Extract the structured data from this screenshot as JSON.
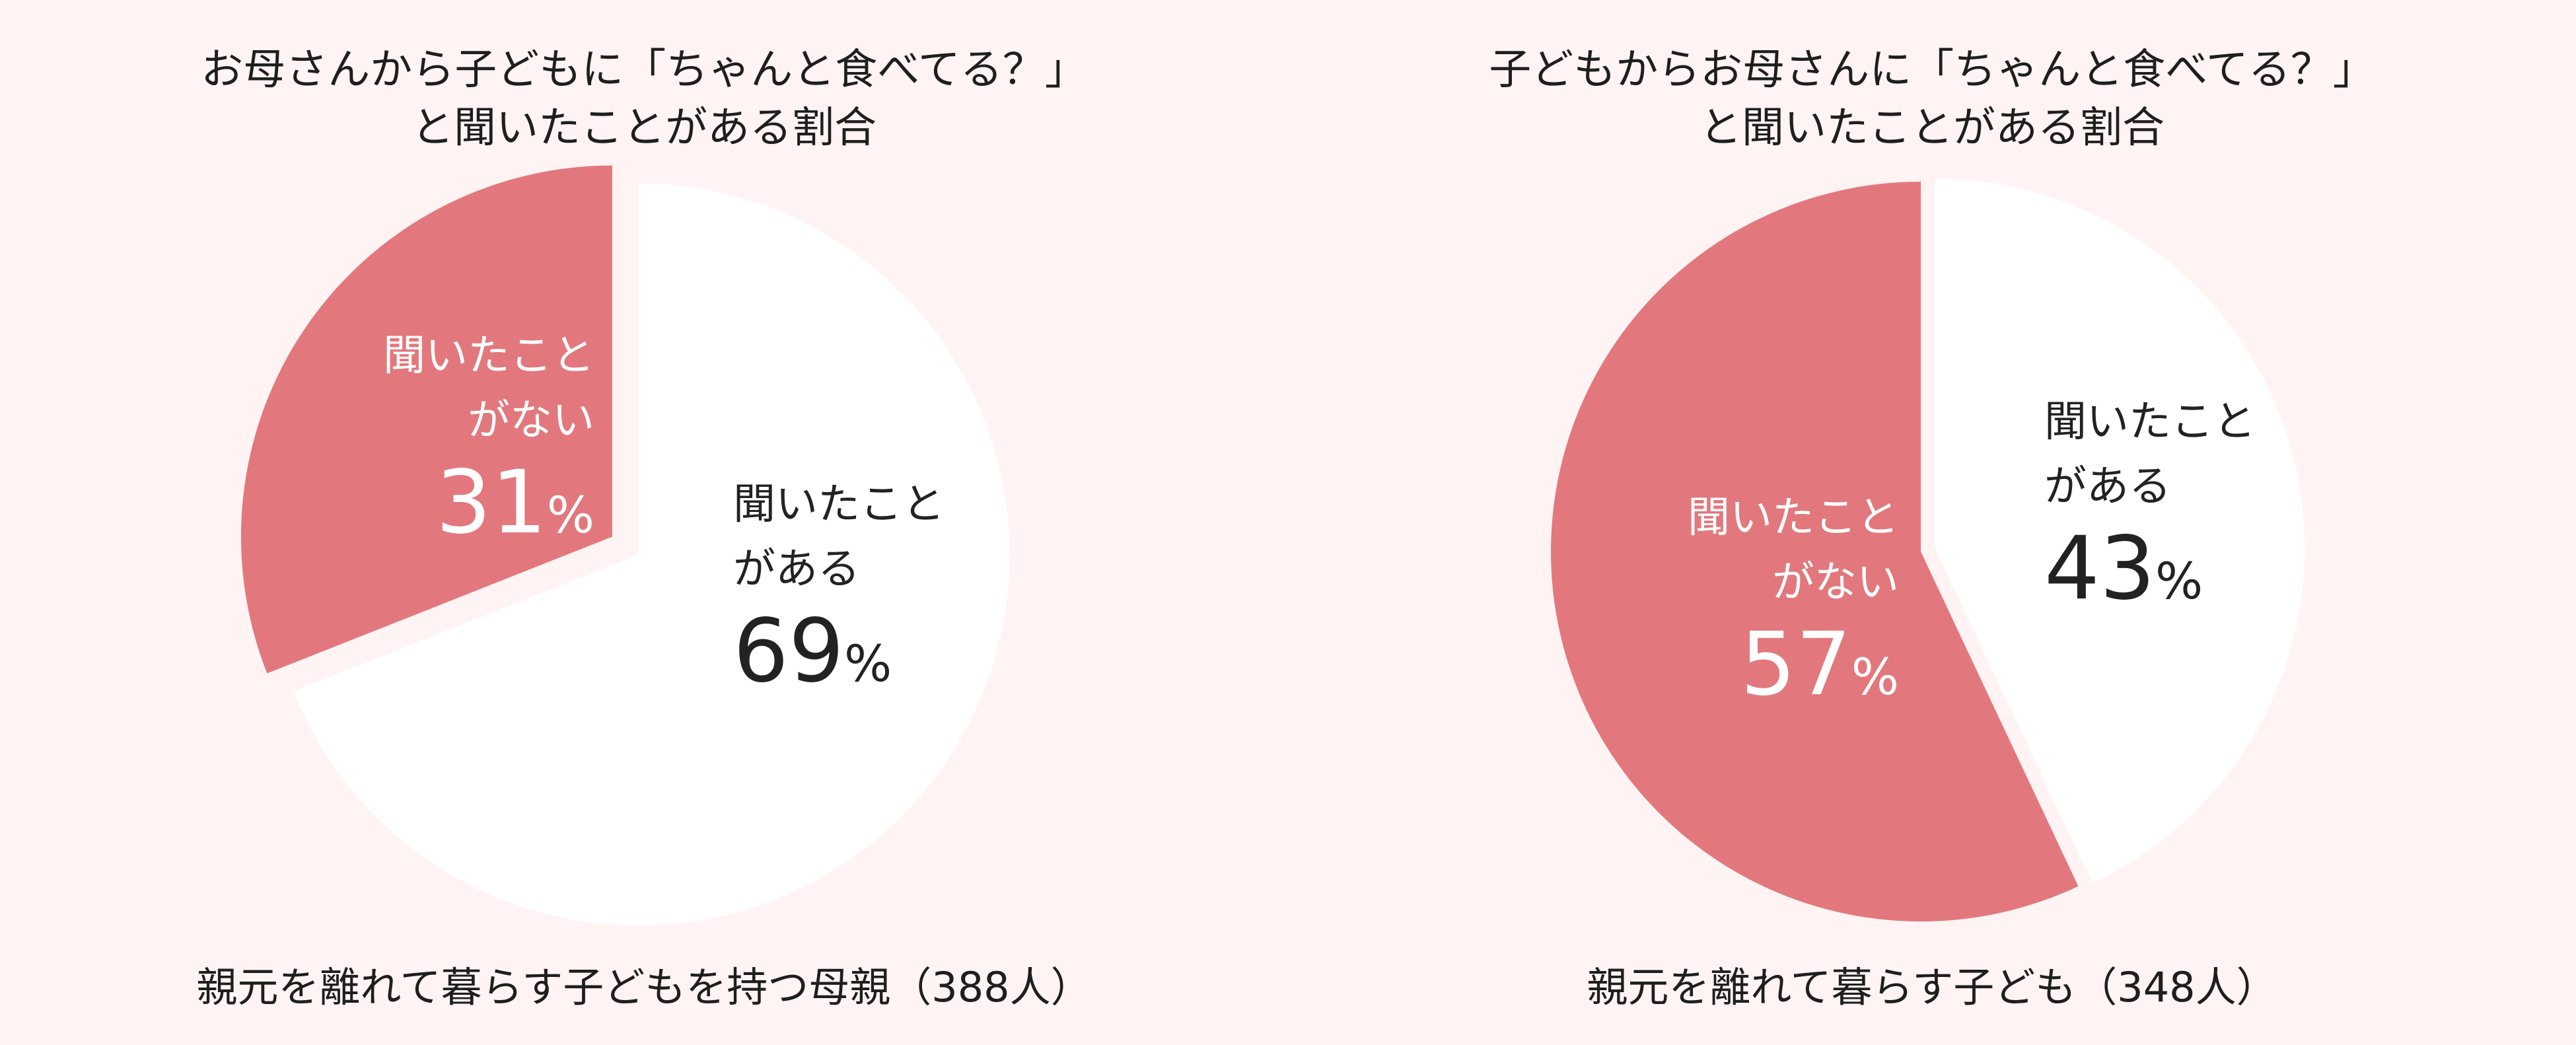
{
  "colors": {
    "background": "#fff3f3",
    "heard": "#ffffff",
    "not_heard": "#e2787d"
  },
  "chart_data": [
    {
      "type": "pie",
      "title": [
        "お母さんから子どもに「ちゃんと食べてる？」",
        "と聞いたことがある割合"
      ],
      "caption": "親元を離れて暮らす子どもを持つ母親（388人）",
      "slices": [
        {
          "label": [
            "聞いたこと",
            "がある"
          ],
          "value": 69,
          "unit": "%",
          "color": "#ffffff"
        },
        {
          "label": [
            "聞いたこと",
            "がない"
          ],
          "value": 31,
          "unit": "%",
          "color": "#e2787d"
        }
      ]
    },
    {
      "type": "pie",
      "title": [
        "子どもからお母さんに「ちゃんと食べてる？」",
        "と聞いたことがある割合"
      ],
      "caption": "親元を離れて暮らす子ども（348人）",
      "slices": [
        {
          "label": [
            "聞いたこと",
            "がある"
          ],
          "value": 43,
          "unit": "%",
          "color": "#ffffff"
        },
        {
          "label": [
            "聞いたこと",
            "がない"
          ],
          "value": 57,
          "unit": "%",
          "color": "#e2787d"
        }
      ]
    }
  ]
}
